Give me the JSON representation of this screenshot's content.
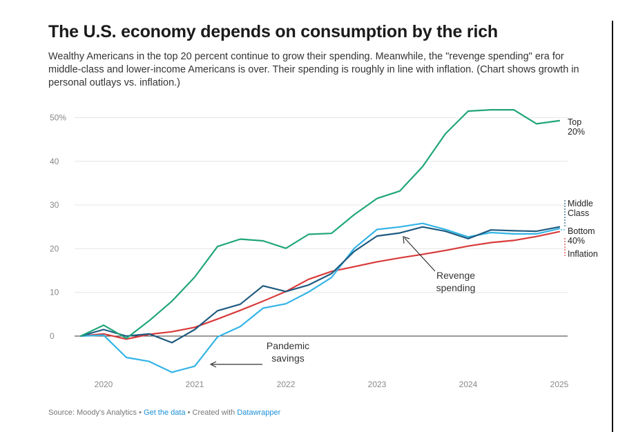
{
  "title": "The U.S. economy depends on consumption by the rich",
  "subtitle": "Wealthy Americans in the top 20 percent continue to grow their spending. Meanwhile, the \"revenge spending\" era for middle-class and lower-income Americans is over. Their spending is roughly in line with inflation. (Chart shows growth in personal outlays vs. inflation.)",
  "footer": {
    "source": "Source: Moody's Analytics",
    "sep1": " • ",
    "get_data": "Get the data",
    "sep2": " • Created with ",
    "datawrapper": "Datawrapper"
  },
  "chart_data": {
    "type": "line",
    "y_ticks": [
      0,
      10,
      20,
      30,
      40,
      50
    ],
    "y_tick_labels": [
      "0",
      "10",
      "20",
      "30",
      "40",
      "50%"
    ],
    "x_ticks": [
      2020,
      2021,
      2022,
      2023,
      2024,
      2025
    ],
    "x_tick_labels": [
      "2020",
      "2021",
      "2022",
      "2023",
      "2024",
      "2025"
    ],
    "ylim": [
      -9,
      52
    ],
    "xlim": [
      2019.75,
      2025.0
    ],
    "grid": true,
    "x": [
      2019.75,
      2020.0,
      2020.25,
      2020.5,
      2020.75,
      2021.0,
      2021.25,
      2021.5,
      2021.75,
      2022.0,
      2022.25,
      2022.5,
      2022.75,
      2023.0,
      2023.25,
      2023.5,
      2023.75,
      2024.0,
      2024.25,
      2024.5,
      2024.75,
      2025.0
    ],
    "series": [
      {
        "name": "Top 20%",
        "label_lines": [
          "Top",
          "20%"
        ],
        "color": "#1fa57a",
        "values": [
          0,
          2.5,
          -0.5,
          3.5,
          8,
          13.5,
          20.5,
          22.2,
          21.8,
          20.1,
          23.3,
          23.5,
          27.8,
          31.5,
          33.2,
          38.8,
          46.3,
          51.5,
          51.8,
          51.8,
          48.6,
          49.3
        ]
      },
      {
        "name": "Middle Class",
        "label_lines": [
          "Middle",
          "Class"
        ],
        "color": "#1e5a80",
        "values": [
          0,
          1.5,
          0,
          0.5,
          -1.5,
          1.5,
          5.8,
          7.3,
          11.5,
          10.2,
          11.7,
          14.3,
          19.4,
          22.9,
          23.6,
          25,
          24,
          22.3,
          24.3,
          24.1,
          24,
          25
        ]
      },
      {
        "name": "Bottom 40%",
        "label_lines": [
          "Bottom",
          "40%"
        ],
        "color": "#33b4e6",
        "values": [
          0,
          0.2,
          -4.9,
          -5.8,
          -8.3,
          -6.9,
          -0.2,
          2.2,
          6.4,
          7.4,
          10.1,
          13.4,
          20.1,
          24.4,
          25,
          25.8,
          24.4,
          22.7,
          23.7,
          23.4,
          23.4,
          24.6
        ]
      },
      {
        "name": "Inflation",
        "label_lines": [
          "Inflation"
        ],
        "color": "#d93a3a",
        "values": [
          0,
          0.5,
          -0.7,
          0.4,
          1,
          2,
          3.9,
          5.9,
          8,
          10.2,
          13,
          14.8,
          15.9,
          17,
          17.9,
          18.7,
          19.6,
          20.6,
          21.4,
          21.9,
          22.8,
          23.9
        ]
      }
    ],
    "annotations": [
      {
        "name": "pandemic-savings",
        "lines": [
          "Pandemic",
          "savings"
        ]
      },
      {
        "name": "revenge-spending",
        "lines": [
          "Revenge",
          "spending"
        ]
      }
    ]
  }
}
